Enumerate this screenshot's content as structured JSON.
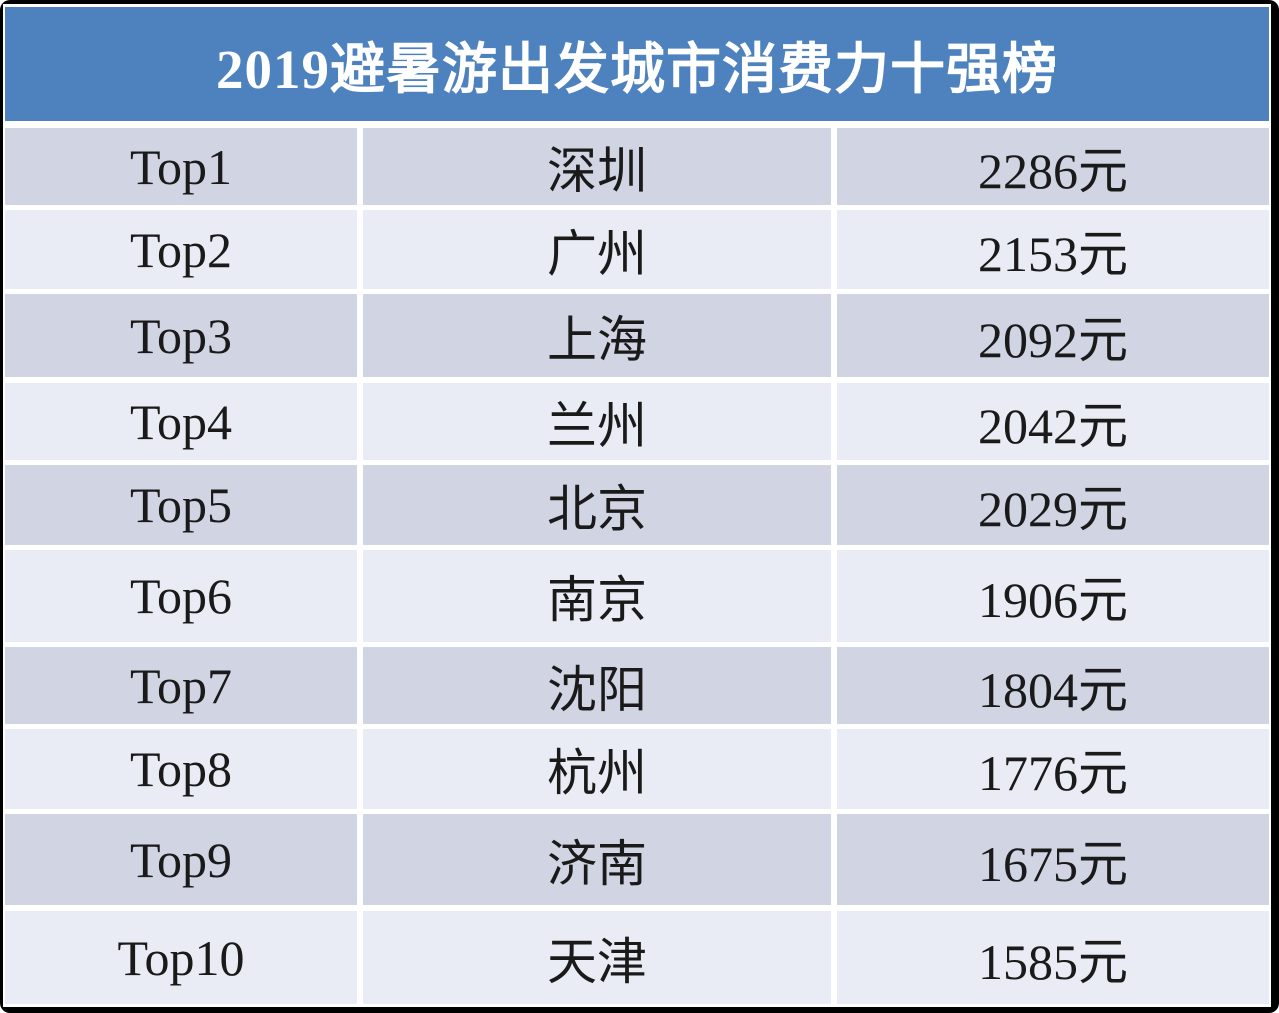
{
  "chart_data": {
    "type": "table",
    "title": "2019避暑游出发城市消费力十强榜",
    "rows": [
      [
        "Top1",
        "深圳",
        "2286元"
      ],
      [
        "Top2",
        "广州",
        "2153元"
      ],
      [
        "Top3",
        "上海",
        "2092元"
      ],
      [
        "Top4",
        "兰州",
        "2042元"
      ],
      [
        "Top5",
        "北京",
        "2029元"
      ],
      [
        "Top6",
        "南京",
        "1906元"
      ],
      [
        "Top7",
        "沈阳",
        "1804元"
      ],
      [
        "Top8",
        "杭州",
        "1776元"
      ],
      [
        "Top9",
        "济南",
        "1675元"
      ],
      [
        "Top10",
        "天津",
        "1585元"
      ]
    ],
    "values_yuan": [
      2286,
      2153,
      2092,
      2042,
      2029,
      1906,
      1804,
      1776,
      1675,
      1585
    ],
    "unit": "元",
    "legend_position": "none",
    "grid": false
  },
  "colors": {
    "header_bg": "#4e82be",
    "row_dark": "#d0d4e3",
    "row_light": "#e9ecf4",
    "frame": "#000000",
    "text": "#1a1a1a",
    "title_text": "#ffffff"
  }
}
